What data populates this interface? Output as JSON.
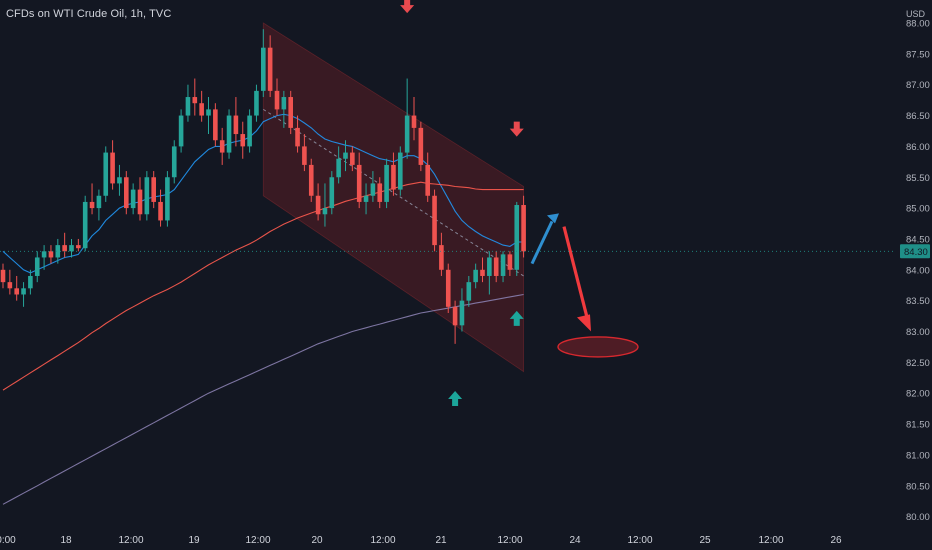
{
  "header": {
    "title": "CFDs on WTI Crude Oil, 1h, TVC",
    "currency": "USD"
  },
  "colors": {
    "background": "#131722",
    "up": "#26a69a",
    "down": "#ef5350",
    "ma_fast": "#2196f3",
    "ma_mid": "#ff5b4f",
    "ma_slow": "#8a7fb0",
    "channel_fill": "#5a1e24",
    "arrow_down": "#e84a4f",
    "arrow_up": "#1ca69b",
    "projection_up": "#2f8fd0",
    "projection_down": "#f03a3e",
    "target_ellipse": "#d7282e",
    "current_price": "#1f8f88"
  },
  "chart_data": {
    "type": "candlestick",
    "title": "CFDs on WTI Crude Oil, 1h, TVC",
    "currency": "USD",
    "ylim": [
      79.9,
      88.3
    ],
    "y_ticks": [
      "88.00",
      "87.50",
      "87.00",
      "86.50",
      "86.00",
      "85.50",
      "85.00",
      "84.50",
      "84.00",
      "83.50",
      "83.00",
      "82.50",
      "82.00",
      "81.50",
      "81.00",
      "80.50",
      "80.00"
    ],
    "x_ticks": [
      "0:00",
      "18",
      "12:00",
      "19",
      "12:00",
      "20",
      "12:00",
      "21",
      "12:00",
      "24",
      "12:00",
      "25",
      "12:00",
      "26"
    ],
    "current_price": 84.3,
    "current_price_label": "84.30",
    "candles": [
      [
        84.0,
        84.1,
        83.7,
        83.8
      ],
      [
        83.8,
        84.0,
        83.6,
        83.7
      ],
      [
        83.7,
        83.9,
        83.5,
        83.6
      ],
      [
        83.6,
        83.8,
        83.4,
        83.7
      ],
      [
        83.7,
        84.0,
        83.6,
        83.9
      ],
      [
        83.9,
        84.3,
        83.8,
        84.2
      ],
      [
        84.2,
        84.4,
        84.0,
        84.3
      ],
      [
        84.3,
        84.4,
        84.1,
        84.2
      ],
      [
        84.2,
        84.5,
        84.1,
        84.4
      ],
      [
        84.4,
        84.6,
        84.2,
        84.3
      ],
      [
        84.3,
        84.5,
        84.2,
        84.4
      ],
      [
        84.4,
        84.5,
        84.3,
        84.35
      ],
      [
        84.35,
        85.2,
        84.3,
        85.1
      ],
      [
        85.1,
        85.4,
        84.9,
        85.0
      ],
      [
        85.0,
        85.3,
        84.8,
        85.2
      ],
      [
        85.2,
        86.0,
        85.1,
        85.9
      ],
      [
        85.9,
        86.1,
        85.3,
        85.4
      ],
      [
        85.4,
        85.7,
        85.2,
        85.5
      ],
      [
        85.5,
        85.6,
        84.9,
        85.0
      ],
      [
        85.0,
        85.4,
        84.9,
        85.3
      ],
      [
        85.3,
        85.5,
        84.8,
        84.9
      ],
      [
        84.9,
        85.6,
        84.8,
        85.5
      ],
      [
        85.5,
        85.6,
        85.0,
        85.1
      ],
      [
        85.1,
        85.3,
        84.7,
        84.8
      ],
      [
        84.8,
        85.6,
        84.7,
        85.5
      ],
      [
        85.5,
        86.1,
        85.4,
        86.0
      ],
      [
        86.0,
        86.6,
        85.9,
        86.5
      ],
      [
        86.5,
        87.0,
        86.4,
        86.8
      ],
      [
        86.8,
        87.1,
        86.5,
        86.7
      ],
      [
        86.7,
        86.9,
        86.4,
        86.5
      ],
      [
        86.5,
        86.8,
        86.2,
        86.6
      ],
      [
        86.6,
        86.7,
        86.0,
        86.1
      ],
      [
        86.1,
        86.3,
        85.7,
        85.9
      ],
      [
        85.9,
        86.6,
        85.8,
        86.5
      ],
      [
        86.5,
        86.8,
        86.0,
        86.2
      ],
      [
        86.2,
        86.4,
        85.8,
        86.0
      ],
      [
        86.0,
        86.6,
        85.9,
        86.5
      ],
      [
        86.5,
        87.0,
        86.4,
        86.9
      ],
      [
        86.9,
        87.9,
        86.8,
        87.6
      ],
      [
        87.6,
        87.8,
        86.8,
        86.9
      ],
      [
        86.9,
        87.1,
        86.5,
        86.6
      ],
      [
        86.6,
        86.9,
        86.3,
        86.8
      ],
      [
        86.8,
        86.9,
        86.2,
        86.3
      ],
      [
        86.3,
        86.5,
        85.9,
        86.0
      ],
      [
        86.0,
        86.2,
        85.6,
        85.7
      ],
      [
        85.7,
        85.8,
        85.1,
        85.2
      ],
      [
        85.2,
        85.4,
        84.8,
        84.9
      ],
      [
        84.9,
        85.4,
        84.7,
        85.0
      ],
      [
        85.0,
        85.6,
        84.9,
        85.5
      ],
      [
        85.5,
        86.0,
        85.4,
        85.8
      ],
      [
        85.8,
        86.1,
        85.6,
        85.9
      ],
      [
        85.9,
        86.0,
        85.6,
        85.7
      ],
      [
        85.7,
        85.9,
        85.0,
        85.1
      ],
      [
        85.1,
        85.4,
        84.9,
        85.2
      ],
      [
        85.2,
        85.6,
        85.1,
        85.4
      ],
      [
        85.4,
        85.5,
        85.0,
        85.1
      ],
      [
        85.1,
        85.8,
        85.0,
        85.7
      ],
      [
        85.7,
        85.9,
        85.2,
        85.3
      ],
      [
        85.3,
        86.0,
        85.2,
        85.9
      ],
      [
        85.9,
        87.1,
        85.8,
        86.5
      ],
      [
        86.5,
        86.8,
        86.1,
        86.3
      ],
      [
        86.3,
        86.4,
        85.6,
        85.7
      ],
      [
        85.7,
        85.9,
        85.1,
        85.2
      ],
      [
        85.2,
        85.3,
        84.3,
        84.4
      ],
      [
        84.4,
        84.6,
        83.9,
        84.0
      ],
      [
        84.0,
        84.1,
        83.3,
        83.4
      ],
      [
        83.4,
        83.5,
        82.8,
        83.1
      ],
      [
        83.1,
        83.7,
        83.0,
        83.5
      ],
      [
        83.5,
        83.9,
        83.4,
        83.8
      ],
      [
        83.8,
        84.1,
        83.7,
        84.0
      ],
      [
        84.0,
        84.2,
        83.8,
        83.9
      ],
      [
        83.9,
        84.3,
        83.6,
        84.2
      ],
      [
        84.2,
        84.3,
        83.8,
        83.9
      ],
      [
        83.9,
        84.3,
        83.8,
        84.25
      ],
      [
        84.25,
        84.3,
        83.9,
        84.0
      ],
      [
        84.0,
        85.1,
        83.9,
        85.05
      ],
      [
        85.05,
        85.2,
        84.2,
        84.3
      ]
    ],
    "series": [
      {
        "name": "MA fast",
        "values": [
          84.3,
          84.2,
          84.1,
          84.0,
          83.95,
          84.0,
          84.05,
          84.1,
          84.15,
          84.2,
          84.22,
          84.25,
          84.4,
          84.55,
          84.65,
          84.8,
          84.9,
          85.0,
          85.05,
          85.08,
          85.1,
          85.15,
          85.18,
          85.2,
          85.22,
          85.3,
          85.45,
          85.6,
          85.75,
          85.85,
          85.95,
          86.0,
          86.0,
          86.05,
          86.08,
          86.1,
          86.15,
          86.25,
          86.4,
          86.45,
          86.5,
          86.52,
          86.5,
          86.45,
          86.38,
          86.3,
          86.2,
          86.12,
          86.08,
          86.05,
          86.02,
          86.0,
          85.95,
          85.9,
          85.85,
          85.8,
          85.78,
          85.75,
          85.8,
          85.85,
          85.85,
          85.8,
          85.7,
          85.55,
          85.35,
          85.15,
          84.95,
          84.8,
          84.7,
          84.62,
          84.55,
          84.5,
          84.45,
          84.4,
          84.38,
          84.45,
          84.45
        ]
      },
      {
        "name": "MA mid",
        "values": [
          82.05,
          82.12,
          82.19,
          82.26,
          82.33,
          82.4,
          82.47,
          82.54,
          82.61,
          82.68,
          82.75,
          82.82,
          82.9,
          82.98,
          83.05,
          83.13,
          83.2,
          83.27,
          83.34,
          83.4,
          83.46,
          83.52,
          83.58,
          83.63,
          83.68,
          83.74,
          83.8,
          83.87,
          83.94,
          84.01,
          84.08,
          84.14,
          84.2,
          84.26,
          84.32,
          84.37,
          84.42,
          84.48,
          84.55,
          84.62,
          84.68,
          84.74,
          84.79,
          84.84,
          84.88,
          84.92,
          84.96,
          85.0,
          85.03,
          85.07,
          85.11,
          85.14,
          85.17,
          85.2,
          85.23,
          85.26,
          85.29,
          85.32,
          85.35,
          85.38,
          85.4,
          85.42,
          85.4,
          85.39,
          85.38,
          85.37,
          85.35,
          85.34,
          85.33,
          85.31,
          85.3,
          85.3,
          85.3,
          85.3,
          85.3,
          85.3,
          85.3
        ]
      },
      {
        "name": "MA slow",
        "values": [
          80.2,
          80.26,
          80.32,
          80.38,
          80.44,
          80.5,
          80.56,
          80.62,
          80.68,
          80.74,
          80.8,
          80.86,
          80.92,
          80.98,
          81.04,
          81.1,
          81.16,
          81.22,
          81.28,
          81.34,
          81.4,
          81.46,
          81.52,
          81.58,
          81.64,
          81.7,
          81.76,
          81.82,
          81.88,
          81.94,
          82.0,
          82.05,
          82.1,
          82.15,
          82.2,
          82.25,
          82.3,
          82.35,
          82.4,
          82.45,
          82.5,
          82.55,
          82.6,
          82.65,
          82.7,
          82.75,
          82.8,
          82.84,
          82.88,
          82.92,
          82.96,
          83.0,
          83.03,
          83.06,
          83.09,
          83.12,
          83.15,
          83.18,
          83.21,
          83.24,
          83.27,
          83.3,
          83.32,
          83.34,
          83.36,
          83.38,
          83.4,
          83.42,
          83.44,
          83.46,
          83.48,
          83.5,
          83.52,
          83.54,
          83.56,
          83.58,
          83.6
        ]
      }
    ],
    "annotations": {
      "channel": {
        "start_index": 38,
        "end_index": 76,
        "upper": [
          88.0,
          85.35
        ],
        "lower": [
          85.2,
          82.35
        ]
      },
      "channel_midline": {
        "start_index": 38,
        "end_index": 76,
        "values": [
          86.6,
          83.9
        ]
      },
      "down_markers": [
        {
          "index": 59,
          "price": 87.9
        },
        {
          "index": 75,
          "price": 85.9
        }
      ],
      "up_markers": [
        {
          "index": 66,
          "price": 82.1
        },
        {
          "index": 75,
          "price": 83.4
        }
      ],
      "projection_up": {
        "from": 84.1,
        "to": 84.85
      },
      "projection_down": {
        "from": 84.7,
        "to": 83.1
      },
      "target_price": 82.75
    }
  }
}
